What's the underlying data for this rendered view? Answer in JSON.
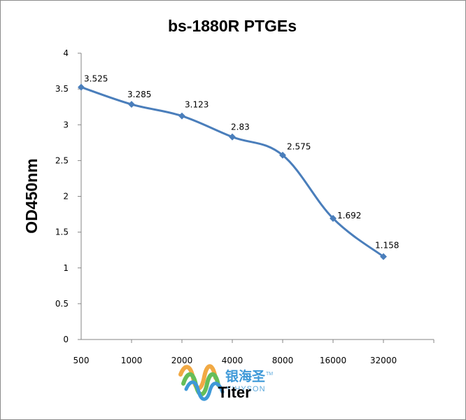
{
  "chart_data": {
    "type": "line",
    "title": "bs-1880R PTGEs",
    "xlabel": "Titer",
    "ylabel": "OD450nm",
    "categories": [
      "500",
      "1000",
      "2000",
      "4000",
      "8000",
      "16000",
      "32000"
    ],
    "series": [
      {
        "values": [
          3.525,
          3.285,
          3.123,
          2.83,
          2.575,
          1.692,
          1.158
        ],
        "labels": [
          "3.525",
          "3.285",
          "3.123",
          "2.83",
          "2.575",
          "1.692",
          "1.158"
        ],
        "color": "#4a7ebb"
      }
    ],
    "ylim": [
      0,
      4
    ],
    "yticks": [
      "0",
      "0.5",
      "1",
      "1.5",
      "2",
      "2.5",
      "3",
      "3.5",
      "4"
    ],
    "grid": false,
    "legend": "none"
  },
  "watermark": {
    "chinese": "银海圣",
    "english": "YIHYSON",
    "tm": "TM"
  }
}
